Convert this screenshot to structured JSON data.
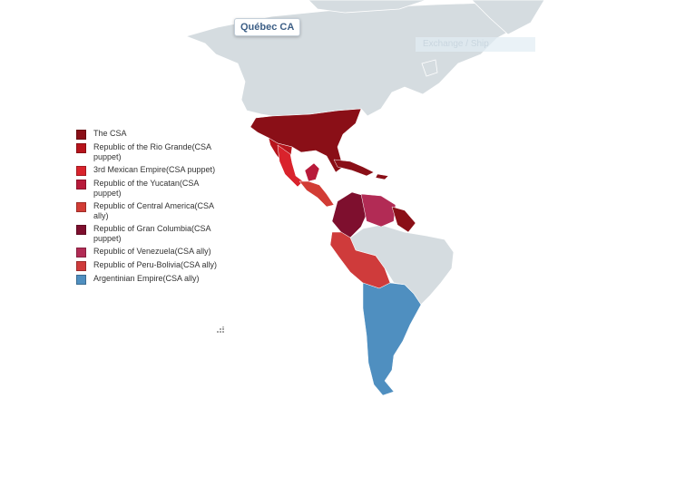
{
  "tooltip": {
    "label": "Québec CA"
  },
  "ghost_label": "Exchange / Ship",
  "legend": {
    "items": [
      {
        "label": "The CSA",
        "color": "#8a0f17"
      },
      {
        "label": "Republic of the Rio Grande(CSA puppet)",
        "color": "#b7141c"
      },
      {
        "label": "3rd Mexican Empire(CSA puppet)",
        "color": "#d9232c"
      },
      {
        "label": "Republic of the Yucatan(CSA puppet)",
        "color": "#b81a3a"
      },
      {
        "label": "Republic of Central America(CSA ally)",
        "color": "#d23c35"
      },
      {
        "label": "Republic of Gran Columbia(CSA puppet)",
        "color": "#7e0f2e"
      },
      {
        "label": "Republic of Venezuela(CSA ally)",
        "color": "#b22b55"
      },
      {
        "label": "Republic of Peru-Bolivia(CSA ally)",
        "color": "#cf3b3b"
      },
      {
        "label": "Argentinian Empire(CSA ally)",
        "color": "#4f8fc0"
      }
    ]
  },
  "colors": {
    "land": "#d5dce0",
    "border": "#ffffff"
  }
}
